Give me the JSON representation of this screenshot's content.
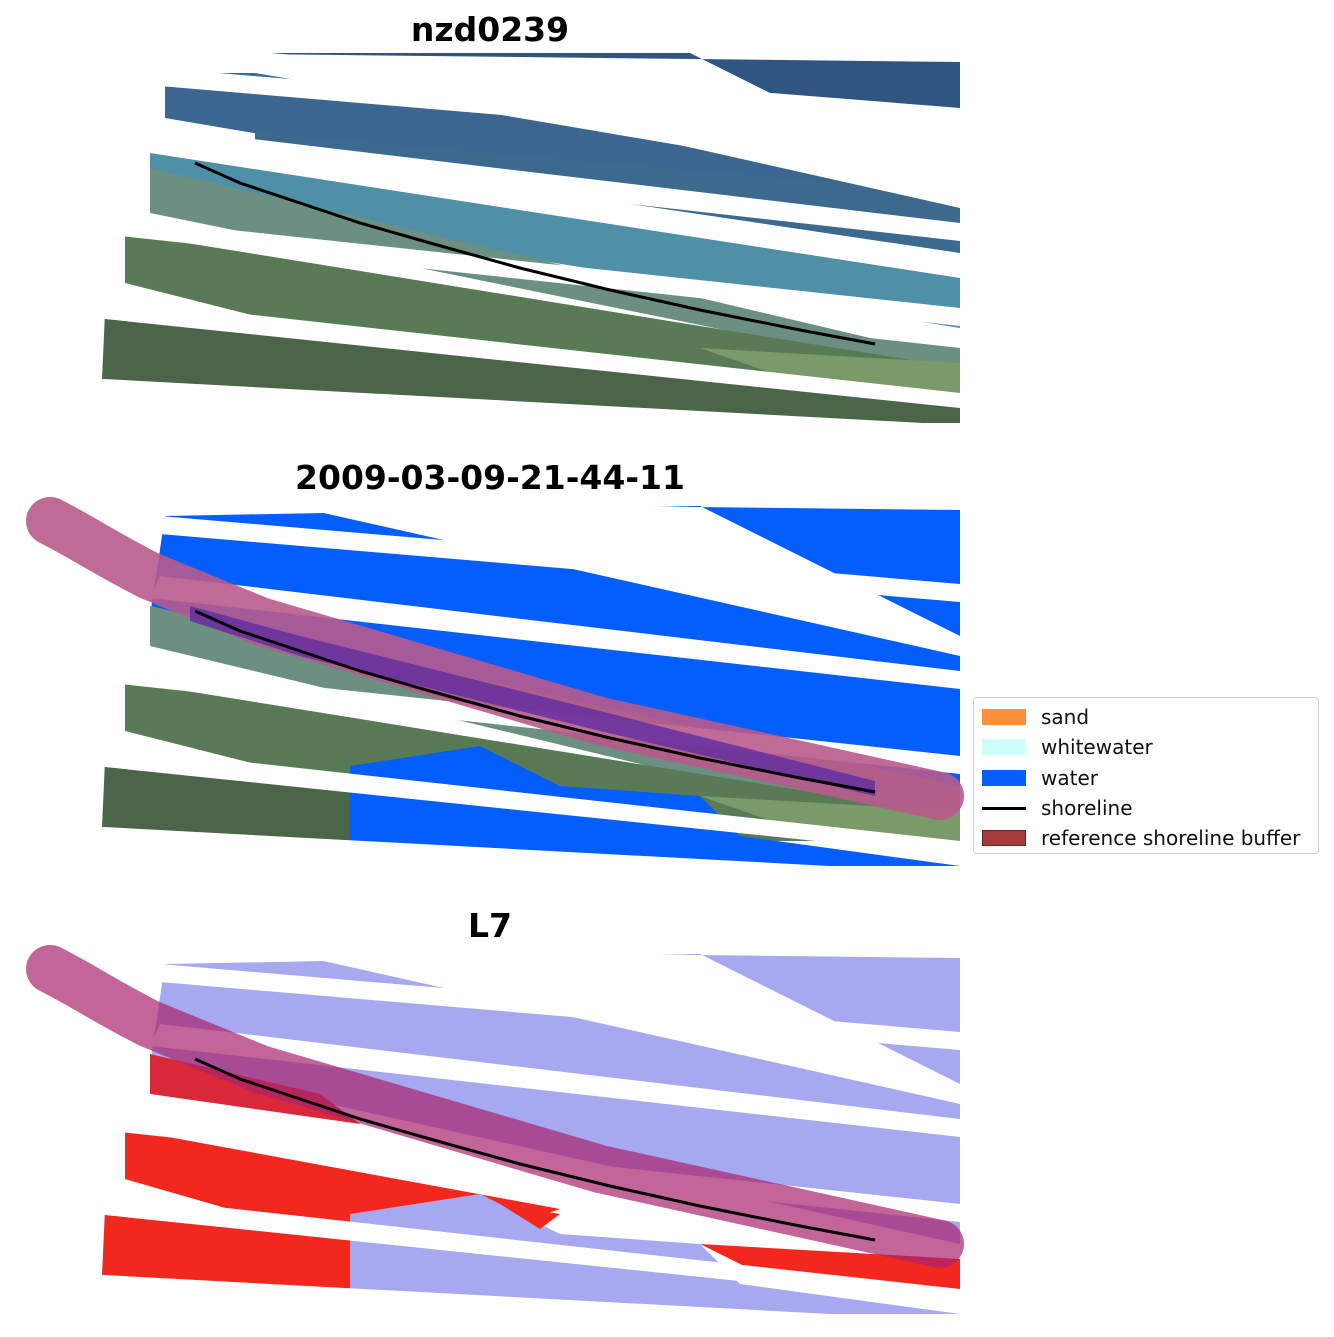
{
  "titles": {
    "panel1": "nzd0239",
    "panel2": "2009-03-09-21-44-11",
    "panel3": "L7"
  },
  "legend": {
    "items": [
      {
        "label": "sand",
        "color": "#fd8f3c",
        "kind": "patch"
      },
      {
        "label": "whitewater",
        "color": "#ccfefe",
        "kind": "patch"
      },
      {
        "label": "water",
        "color": "#045efe",
        "kind": "patch"
      },
      {
        "label": "shoreline",
        "color": "#000000",
        "kind": "line"
      },
      {
        "label": "reference shoreline buffer",
        "color": "#a43b3b",
        "kind": "patch"
      }
    ]
  },
  "colors": {
    "ocean_rgb": "#3a6a96",
    "nearshore_rgb": "#4f8fa8",
    "land_rgb": "#5c7a5a",
    "water_class": "#045efe",
    "buffer": "#b85a8c",
    "index_water": "#a7a9f0",
    "index_land": "#f2281e"
  }
}
